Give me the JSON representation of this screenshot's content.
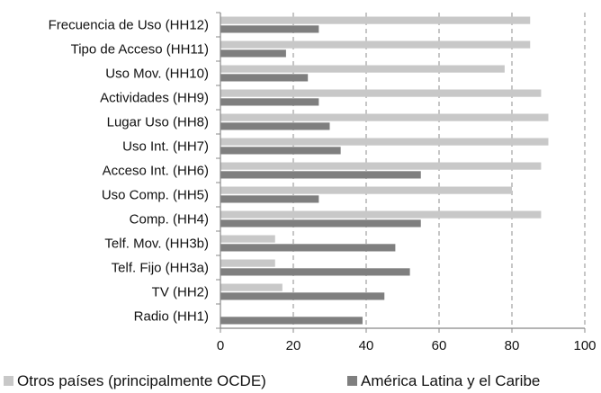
{
  "chart_data": {
    "type": "bar",
    "orientation": "horizontal",
    "categories": [
      "Frecuencia de Uso (HH12)",
      "Tipo de Acceso (HH11)",
      "Uso Mov. (HH10)",
      "Actividades (HH9)",
      "Lugar Uso (HH8)",
      "Uso Int. (HH7)",
      "Acceso Int. (HH6)",
      "Uso Comp. (HH5)",
      "Comp. (HH4)",
      "Telf. Mov. (HH3b)",
      "Telf. Fijo (HH3a)",
      "TV (HH2)",
      "Radio (HH1)"
    ],
    "series": [
      {
        "name": "Otros países (principalmente OCDE)",
        "color": "#c8c8c8",
        "values": [
          85,
          85,
          78,
          88,
          90,
          90,
          88,
          80,
          88,
          15,
          15,
          17,
          null
        ]
      },
      {
        "name": "América Latina y el Caribe",
        "color": "#7f7f7f",
        "values": [
          27,
          18,
          24,
          27,
          30,
          33,
          55,
          27,
          55,
          48,
          52,
          45,
          39
        ]
      }
    ],
    "xlim": [
      0,
      100
    ],
    "xticks": [
      "0",
      "20",
      "40",
      "60",
      "80",
      "100"
    ],
    "grid": "vertical-dashed",
    "legend_position": "bottom"
  }
}
